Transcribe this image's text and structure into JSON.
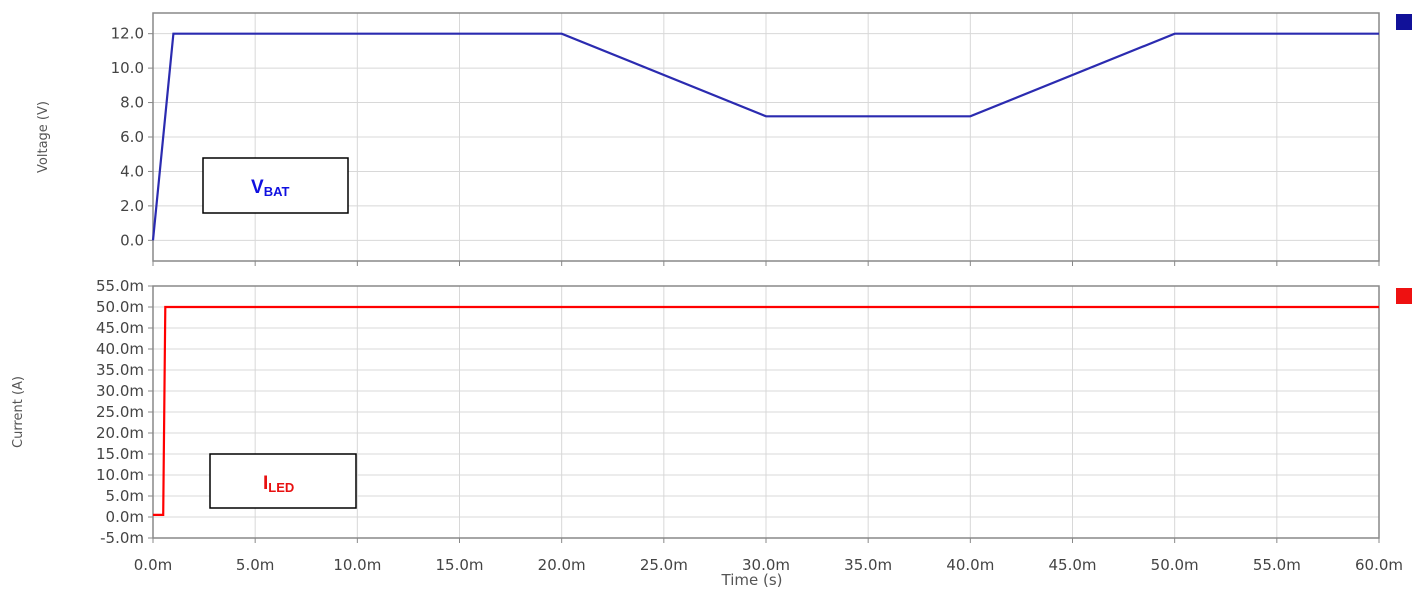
{
  "chart_data": [
    {
      "type": "line",
      "xlabel": "",
      "ylabel": "Voltage (V)",
      "xlim": [
        0,
        0.06
      ],
      "ylim": [
        -1.2,
        13.2
      ],
      "yticks": [
        0,
        2,
        4,
        6,
        8,
        10,
        12
      ],
      "ytick_labels": [
        "0.0",
        "2.0",
        "4.0",
        "6.0",
        "8.0",
        "10.0",
        "12.0"
      ],
      "grid": true,
      "legend": "top-right",
      "series": [
        {
          "color": "#2b2bb0",
          "x": [
            0,
            0.001,
            0.02,
            0.03,
            0.04,
            0.05,
            0.06
          ],
          "y": [
            0,
            12,
            12,
            7.2,
            7.2,
            12,
            12
          ]
        }
      ],
      "annotation": {
        "main": "V",
        "sub": "BAT",
        "color": "#1010e0"
      }
    },
    {
      "type": "line",
      "xlabel": "Time (s)",
      "ylabel": "Current (A)",
      "xlim": [
        0,
        0.06
      ],
      "ylim": [
        -0.005,
        0.055
      ],
      "yticks": [
        -0.005,
        0,
        0.005,
        0.01,
        0.015,
        0.02,
        0.025,
        0.03,
        0.035,
        0.04,
        0.045,
        0.05,
        0.055
      ],
      "ytick_labels": [
        "-5.0m",
        "0.0m",
        "5.0m",
        "10.0m",
        "15.0m",
        "20.0m",
        "25.0m",
        "30.0m",
        "35.0m",
        "40.0m",
        "45.0m",
        "50.0m",
        "55.0m"
      ],
      "xticks": [
        0,
        0.005,
        0.01,
        0.015,
        0.02,
        0.025,
        0.03,
        0.035,
        0.04,
        0.045,
        0.05,
        0.055,
        0.06
      ],
      "xtick_labels": [
        "0.0m",
        "5.0m",
        "10.0m",
        "15.0m",
        "20.0m",
        "25.0m",
        "30.0m",
        "35.0m",
        "40.0m",
        "45.0m",
        "50.0m",
        "55.0m",
        "60.0m"
      ],
      "grid": true,
      "legend": "top-right",
      "series": [
        {
          "color": "#ff0000",
          "x": [
            0,
            0.0005,
            0.0006,
            0.06
          ],
          "y": [
            0.0005,
            0.0005,
            0.05,
            0.05
          ]
        }
      ],
      "annotation": {
        "main": "I",
        "sub": "LED",
        "color": "#e81010"
      }
    }
  ]
}
